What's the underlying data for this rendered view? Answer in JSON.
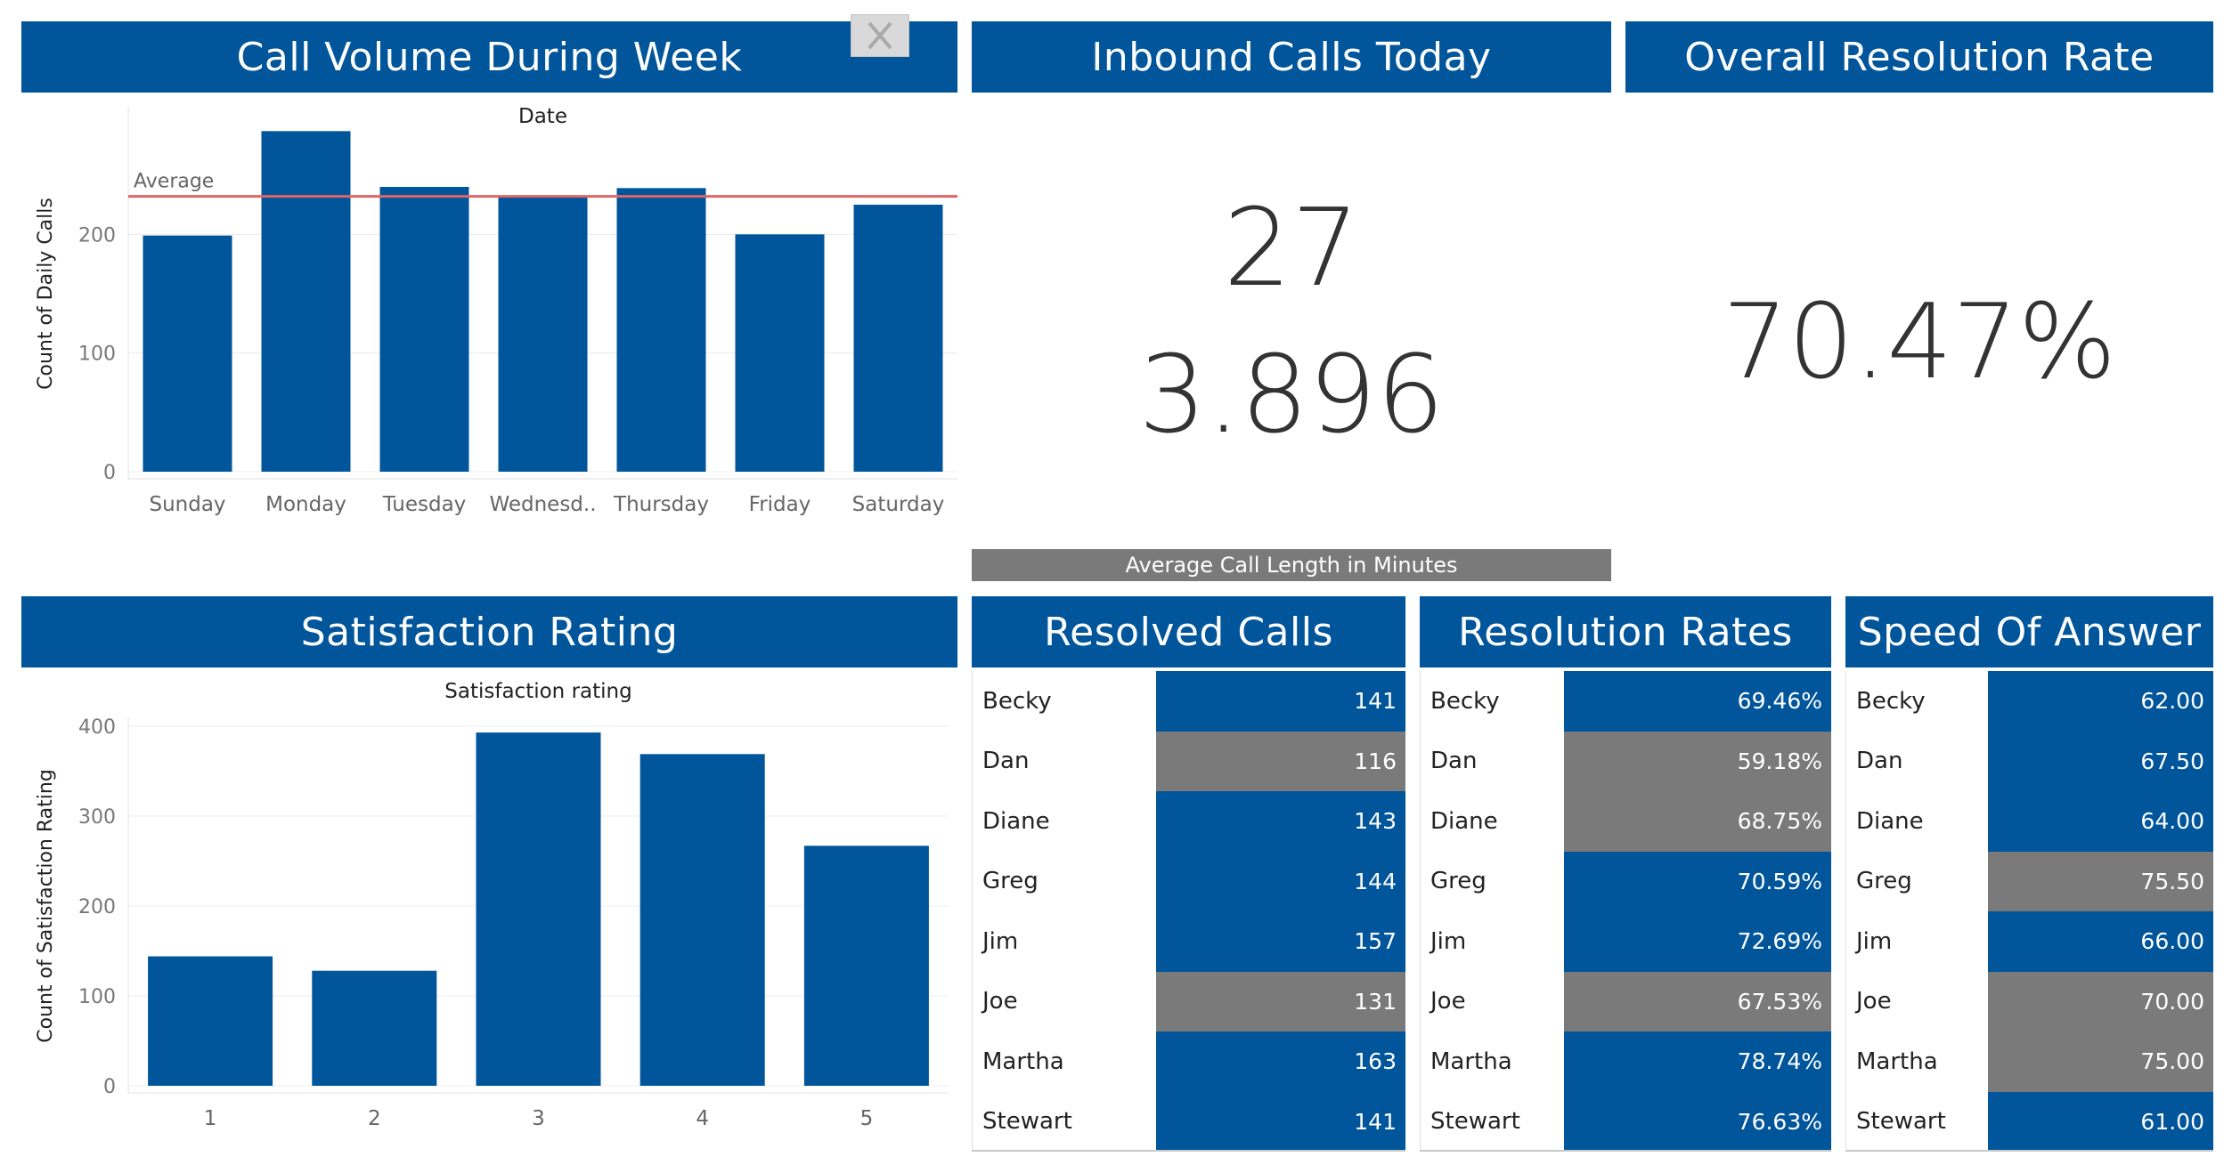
{
  "headers": {
    "call_volume": "Call Volume During Week",
    "inbound_calls": "Inbound Calls Today",
    "resolution_rate": "Overall Resolution Rate",
    "satisfaction": "Satisfaction Rating",
    "resolved_calls": "Resolved Calls",
    "resolution_rates": "Resolution Rates",
    "speed_of_answer": "Speed Of Answer"
  },
  "kpis": {
    "inbound_calls_today": "27",
    "avg_call_length": "3.896",
    "avg_call_length_caption": "Average Call Length in Minutes",
    "overall_resolution_rate": "70.47%"
  },
  "colors": {
    "primary": "#00559b",
    "highlight": "#7a7a7a",
    "average_line": "#e06666"
  },
  "icons": {
    "close": "close-icon"
  },
  "chart_data": [
    {
      "type": "bar",
      "title": "Date",
      "xlabel": "",
      "ylabel": "Count of Daily Calls",
      "categories": [
        "Sunday",
        "Monday",
        "Tuesday",
        "Wednesd..",
        "Thursday",
        "Friday",
        "Saturday"
      ],
      "values": [
        199,
        287,
        240,
        231,
        239,
        200,
        225
      ],
      "ylim": [
        0,
        300
      ],
      "yticks": [
        0,
        100,
        200
      ],
      "reference_line": {
        "label": "Average",
        "value": 232
      },
      "grid": true
    },
    {
      "type": "bar",
      "title": "Satisfaction rating",
      "xlabel": "",
      "ylabel": "Count of Satisfaction Rating",
      "categories": [
        "1",
        "2",
        "3",
        "4",
        "5"
      ],
      "values": [
        144,
        128,
        393,
        369,
        267
      ],
      "ylim": [
        0,
        400
      ],
      "yticks": [
        0,
        100,
        200,
        300,
        400
      ],
      "grid": true
    }
  ],
  "tables": {
    "resolved_calls": [
      {
        "name": "Becky",
        "value": "141",
        "highlight": false
      },
      {
        "name": "Dan",
        "value": "116",
        "highlight": true
      },
      {
        "name": "Diane",
        "value": "143",
        "highlight": false
      },
      {
        "name": "Greg",
        "value": "144",
        "highlight": false
      },
      {
        "name": "Jim",
        "value": "157",
        "highlight": false
      },
      {
        "name": "Joe",
        "value": "131",
        "highlight": true
      },
      {
        "name": "Martha",
        "value": "163",
        "highlight": false
      },
      {
        "name": "Stewart",
        "value": "141",
        "highlight": false
      }
    ],
    "resolution_rates": [
      {
        "name": "Becky",
        "value": "69.46%",
        "highlight": false
      },
      {
        "name": "Dan",
        "value": "59.18%",
        "highlight": true
      },
      {
        "name": "Diane",
        "value": "68.75%",
        "highlight": true
      },
      {
        "name": "Greg",
        "value": "70.59%",
        "highlight": false
      },
      {
        "name": "Jim",
        "value": "72.69%",
        "highlight": false
      },
      {
        "name": "Joe",
        "value": "67.53%",
        "highlight": true
      },
      {
        "name": "Martha",
        "value": "78.74%",
        "highlight": false
      },
      {
        "name": "Stewart",
        "value": "76.63%",
        "highlight": false
      }
    ],
    "speed_of_answer": [
      {
        "name": "Becky",
        "value": "62.00",
        "highlight": false
      },
      {
        "name": "Dan",
        "value": "67.50",
        "highlight": false
      },
      {
        "name": "Diane",
        "value": "64.00",
        "highlight": false
      },
      {
        "name": "Greg",
        "value": "75.50",
        "highlight": true
      },
      {
        "name": "Jim",
        "value": "66.00",
        "highlight": false
      },
      {
        "name": "Joe",
        "value": "70.00",
        "highlight": true
      },
      {
        "name": "Martha",
        "value": "75.00",
        "highlight": true
      },
      {
        "name": "Stewart",
        "value": "61.00",
        "highlight": false
      }
    ]
  }
}
